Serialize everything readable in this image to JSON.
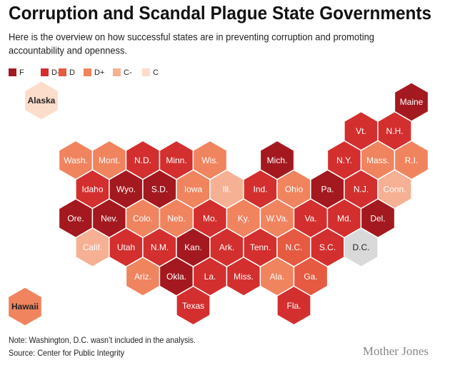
{
  "title": "Corruption and Scandal Plague State Governments",
  "subtitle": [
    "Here is the overview on how successful states are in preventing corruption and promoting",
    "accountability and openness."
  ],
  "legend": [
    {
      "grade": "F",
      "color": "#a3191f"
    },
    {
      "grade": "D-",
      "color": "#d32f2f"
    },
    {
      "grade": "D",
      "color": "#e65a41"
    },
    {
      "grade": "D+",
      "color": "#f0845f"
    },
    {
      "grade": "C-",
      "color": "#f6b094"
    },
    {
      "grade": "C",
      "color": "#fcdccb"
    }
  ],
  "no_data_color": "#d9d9d9",
  "states": [
    {
      "label": "Alaska",
      "grade": "C"
    },
    {
      "label": "Maine",
      "grade": "F"
    },
    {
      "label": "Vt.",
      "grade": "D-"
    },
    {
      "label": "N.H.",
      "grade": "D-"
    },
    {
      "label": "Wash.",
      "grade": "D+"
    },
    {
      "label": "Mont.",
      "grade": "D+"
    },
    {
      "label": "N.D.",
      "grade": "D-"
    },
    {
      "label": "Minn.",
      "grade": "D-"
    },
    {
      "label": "Wis.",
      "grade": "D+"
    },
    {
      "label": "Mich.",
      "grade": "F"
    },
    {
      "label": "N.Y.",
      "grade": "D-"
    },
    {
      "label": "Mass.",
      "grade": "D+"
    },
    {
      "label": "R.I.",
      "grade": "D+"
    },
    {
      "label": "Idaho",
      "grade": "D-"
    },
    {
      "label": "Wyo.",
      "grade": "F"
    },
    {
      "label": "S.D.",
      "grade": "F"
    },
    {
      "label": "Iowa",
      "grade": "D+"
    },
    {
      "label": "Ill.",
      "grade": "C-"
    },
    {
      "label": "Ind.",
      "grade": "D-"
    },
    {
      "label": "Ohio",
      "grade": "D+"
    },
    {
      "label": "Pa.",
      "grade": "F"
    },
    {
      "label": "N.J.",
      "grade": "D-"
    },
    {
      "label": "Conn.",
      "grade": "C-"
    },
    {
      "label": "Ore.",
      "grade": "F"
    },
    {
      "label": "Nev.",
      "grade": "F"
    },
    {
      "label": "Colo.",
      "grade": "D+"
    },
    {
      "label": "Neb.",
      "grade": "D+"
    },
    {
      "label": "Mo.",
      "grade": "D-"
    },
    {
      "label": "Ky.",
      "grade": "D+"
    },
    {
      "label": "W.Va.",
      "grade": "D+"
    },
    {
      "label": "Va.",
      "grade": "D-"
    },
    {
      "label": "Md.",
      "grade": "D-"
    },
    {
      "label": "Del.",
      "grade": "F"
    },
    {
      "label": "Calif.",
      "grade": "C-"
    },
    {
      "label": "Utah",
      "grade": "D-"
    },
    {
      "label": "N.M.",
      "grade": "D-"
    },
    {
      "label": "Kan.",
      "grade": "F"
    },
    {
      "label": "Ark.",
      "grade": "D-"
    },
    {
      "label": "Tenn.",
      "grade": "D-"
    },
    {
      "label": "N.C.",
      "grade": "D"
    },
    {
      "label": "S.C.",
      "grade": "D-"
    },
    {
      "label": "D.C."
    },
    {
      "label": "Ariz.",
      "grade": "D+"
    },
    {
      "label": "Okla.",
      "grade": "F"
    },
    {
      "label": "La.",
      "grade": "D-"
    },
    {
      "label": "Miss.",
      "grade": "D-"
    },
    {
      "label": "Ala.",
      "grade": "D+"
    },
    {
      "label": "Ga.",
      "grade": "D"
    },
    {
      "label": "Texas",
      "grade": "D-"
    },
    {
      "label": "Fla.",
      "grade": "D-"
    },
    {
      "label": "Hawaii",
      "grade": "D+"
    }
  ],
  "note": "Note: Washington, D.C. wasn’t included in the analysis.",
  "source": "Source: Center for Public Integrity",
  "logo": "Mother Jones"
}
